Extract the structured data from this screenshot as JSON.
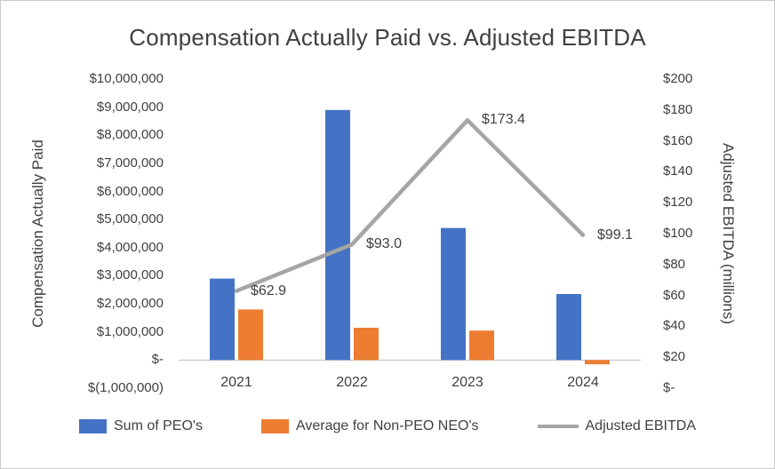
{
  "chart_data": {
    "type": "combo-bar-line",
    "title": "Compensation Actually Paid vs. Adjusted EBITDA",
    "categories": [
      "2021",
      "2022",
      "2023",
      "2024"
    ],
    "series": [
      {
        "name": "Sum of PEO's",
        "type": "bar",
        "axis": "left",
        "color": "#4472C4",
        "values": [
          2900000,
          8900000,
          4700000,
          2350000
        ]
      },
      {
        "name": "Average for Non-PEO NEO's",
        "type": "bar",
        "axis": "left",
        "color": "#ED7D31",
        "values": [
          1800000,
          1150000,
          1050000,
          -150000
        ]
      },
      {
        "name": "Adjusted EBITDA",
        "type": "line",
        "axis": "right",
        "color": "#A5A5A5",
        "values": [
          62.9,
          93.0,
          173.4,
          99.1
        ],
        "point_labels": [
          "$62.9",
          "$93.0",
          "$173.4",
          "$99.1"
        ]
      }
    ],
    "left_axis": {
      "title": "Compensation Actually Paid",
      "min": -1000000,
      "max": 10000000,
      "ticks": [
        "$10,000,000",
        "$9,000,000",
        "$8,000,000",
        "$7,000,000",
        "$6,000,000",
        "$5,000,000",
        "$4,000,000",
        "$3,000,000",
        "$2,000,000",
        "$1,000,000",
        "$-",
        "$(1,000,000)"
      ]
    },
    "right_axis": {
      "title": "Adjusted EBITDA (millions)",
      "min": 0,
      "max": 200,
      "ticks": [
        "$200",
        "$180",
        "$160",
        "$140",
        "$120",
        "$100",
        "$80",
        "$60",
        "$40",
        "$20",
        "$-"
      ]
    },
    "legend_position": "bottom",
    "grid": "off",
    "colors": {
      "axis_line": "#BFBFBF",
      "text": "#404040"
    }
  }
}
